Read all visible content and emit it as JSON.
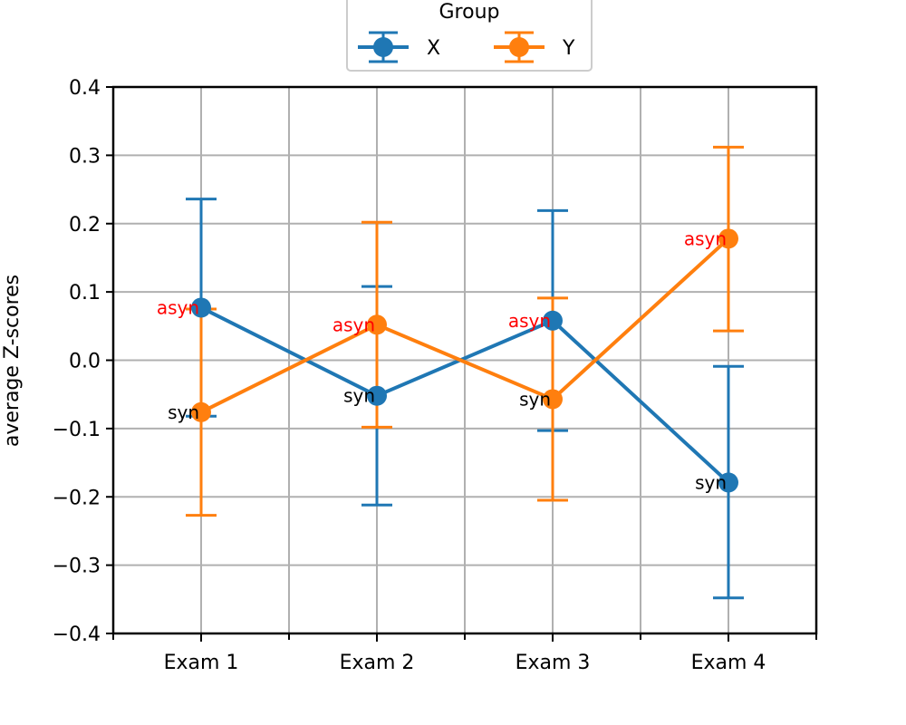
{
  "chart_data": {
    "type": "line",
    "title": "",
    "xlabel": "",
    "ylabel": "average Z-scores",
    "categories": [
      "Exam 1",
      "Exam 2",
      "Exam 3",
      "Exam 4"
    ],
    "ylim": [
      -0.4,
      0.4
    ],
    "yticks": [
      -0.4,
      -0.3,
      -0.2,
      -0.1,
      0.0,
      0.1,
      0.2,
      0.3,
      0.4
    ],
    "ytick_labels": [
      "−0.4",
      "−0.3",
      "−0.2",
      "−0.1",
      "0.0",
      "0.1",
      "0.2",
      "0.3",
      "0.4"
    ],
    "grid": true,
    "legend": {
      "title": "Group",
      "placement": "top-center"
    },
    "series": [
      {
        "name": "X",
        "color": "#1f77b4",
        "values": [
          0.077,
          -0.052,
          0.058,
          -0.179
        ],
        "err_low": [
          -0.082,
          -0.212,
          -0.103,
          -0.348
        ],
        "err_high": [
          0.236,
          0.108,
          0.219,
          -0.009
        ],
        "labels": [
          "asyn",
          "syn",
          "asyn",
          "syn"
        ]
      },
      {
        "name": "Y",
        "color": "#ff7f0e",
        "values": [
          -0.076,
          0.052,
          -0.057,
          0.178
        ],
        "err_low": [
          -0.227,
          -0.098,
          -0.205,
          0.043
        ],
        "err_high": [
          0.075,
          0.202,
          0.091,
          0.312
        ],
        "labels": [
          "syn",
          "asyn",
          "syn",
          "asyn"
        ]
      }
    ],
    "label_colors": {
      "asyn": "#ff0000",
      "syn": "#000000"
    }
  }
}
